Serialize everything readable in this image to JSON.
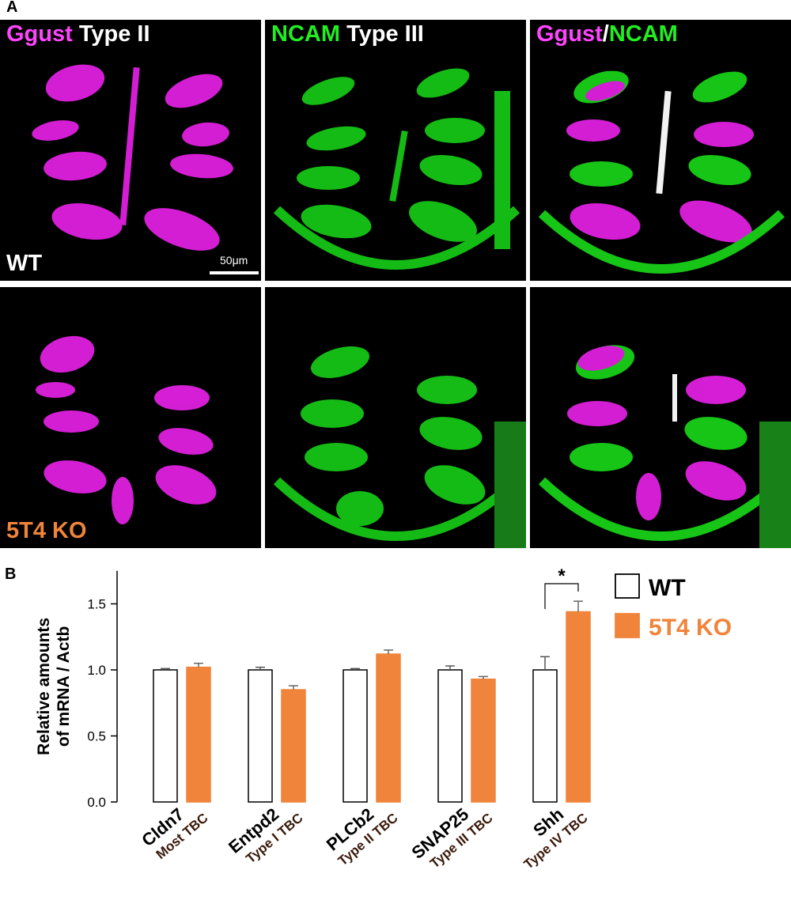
{
  "panel_a": {
    "letter": "A",
    "columns": [
      {
        "marker": "Ggust",
        "marker_color": "#ff44ff",
        "type": "Type II"
      },
      {
        "marker": "NCAM",
        "marker_color": "#22ee22",
        "type": "Type III"
      },
      {
        "marker1": "Ggust",
        "marker1_color": "#ff44ff",
        "sep": "/",
        "marker2": "NCAM",
        "marker2_color": "#22ee22"
      }
    ],
    "rows": [
      {
        "label": "WT",
        "label_color": "#ffffff"
      },
      {
        "label": "5T4 KO",
        "label_color": "#f0843a"
      }
    ],
    "scale_bar": "50μm"
  },
  "panel_b": {
    "letter": "B"
  },
  "chart_data": {
    "type": "bar",
    "ylabel_line1": "Relative amounts",
    "ylabel_line2": "of mRNA / Actb",
    "ylim": [
      0,
      1.75
    ],
    "yticks": [
      "0.0",
      "0.5",
      "1.0",
      "1.5"
    ],
    "ytick_values": [
      0,
      0.5,
      1.0,
      1.5
    ],
    "categories": [
      {
        "gene": "Cldn7",
        "cell": "Most TBC"
      },
      {
        "gene": "Entpd2",
        "cell": "Type I TBC"
      },
      {
        "gene": "PLCb2",
        "cell": "Type II TBC"
      },
      {
        "gene": "SNAP25",
        "cell": "Type III TBC"
      },
      {
        "gene": "Shh",
        "cell": "Type IV TBC"
      }
    ],
    "series": [
      {
        "name": "WT",
        "fill": "#ffffff",
        "stroke": "#000000",
        "values": [
          1.0,
          1.0,
          1.0,
          1.0,
          1.0
        ],
        "errors": [
          0.01,
          0.02,
          0.01,
          0.03,
          0.1
        ]
      },
      {
        "name": "5T4 KO",
        "fill": "#f0843a",
        "stroke": "#f0843a",
        "values": [
          1.02,
          0.85,
          1.12,
          0.93,
          1.44
        ],
        "errors": [
          0.03,
          0.03,
          0.03,
          0.02,
          0.08
        ]
      }
    ],
    "significance": {
      "category_index": 4,
      "label": "*"
    },
    "legend_position": "top-right",
    "legend_colors": {
      "WT": "#000000",
      "5T4 KO": "#f0843a"
    }
  }
}
